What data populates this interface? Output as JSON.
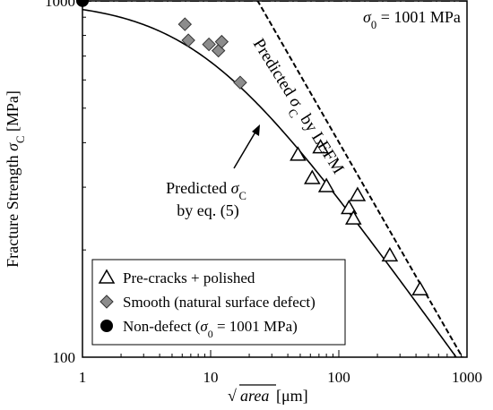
{
  "chart_data": {
    "type": "scatter",
    "xlabel": {
      "pre": "√",
      "italic": "area",
      "post": " [μm]"
    },
    "ylabel": {
      "pre": "Fracture Strength ",
      "italic": "σ",
      "sub": "C",
      "post": " [MPa]"
    },
    "x_scale": "log",
    "y_scale": "log",
    "xlim": [
      1,
      1000
    ],
    "ylim": [
      100,
      1000
    ],
    "x_ticks": [
      1,
      10,
      100,
      1000
    ],
    "x_tick_labels": [
      "1",
      "10",
      "100",
      "1000"
    ],
    "y_ticks": [
      100,
      1000
    ],
    "y_tick_labels": [
      "100",
      "1000"
    ],
    "grid": false,
    "legend_position": "bottom-left",
    "series": [
      {
        "name": "Pre-cracks + polished",
        "marker": "open-triangle",
        "points": [
          [
            48,
            370
          ],
          [
            62,
            318
          ],
          [
            72,
            388
          ],
          [
            80,
            302
          ],
          [
            120,
            262
          ],
          [
            130,
            245
          ],
          [
            140,
            285
          ],
          [
            250,
            193
          ],
          [
            430,
            155
          ]
        ]
      },
      {
        "name": "Smooth (natural surface defect)",
        "marker": "gray-diamond",
        "points": [
          [
            6.3,
            860
          ],
          [
            6.7,
            775
          ],
          [
            9.7,
            755
          ],
          [
            11.5,
            725
          ],
          [
            12.2,
            768
          ],
          [
            17,
            590
          ]
        ]
      },
      {
        "name": "Non-defect (σ0 = 1001 MPa)",
        "legend_label": {
          "pre": "Non-defect (",
          "italic": "σ",
          "sub": "0",
          "post": " = 1001 MPa)"
        },
        "marker": "black-circle",
        "points": [
          [
            1,
            1001
          ]
        ]
      }
    ],
    "reference_line": {
      "value": 1001,
      "label": {
        "italic": "σ",
        "sub": "0",
        "post": " = 1001 MPa"
      }
    },
    "lefm_line": {
      "label": {
        "pre": "Predicted ",
        "italic": "σ",
        "sub": "C",
        "post": " by LEFM"
      },
      "points": [
        [
          20,
          1100
        ],
        [
          920,
          100
        ]
      ]
    },
    "eq5_curve": {
      "label_line1": {
        "pre": "Predicted ",
        "italic": "σ",
        "sub": "C"
      },
      "label_line2": "by eq. (5)",
      "sigma0": 1001,
      "a0": 8.3
    }
  },
  "colors": {
    "axis": "#000000",
    "diamond_fill": "#8c8c8c",
    "circle_fill": "#000000",
    "background": "#ffffff"
  }
}
